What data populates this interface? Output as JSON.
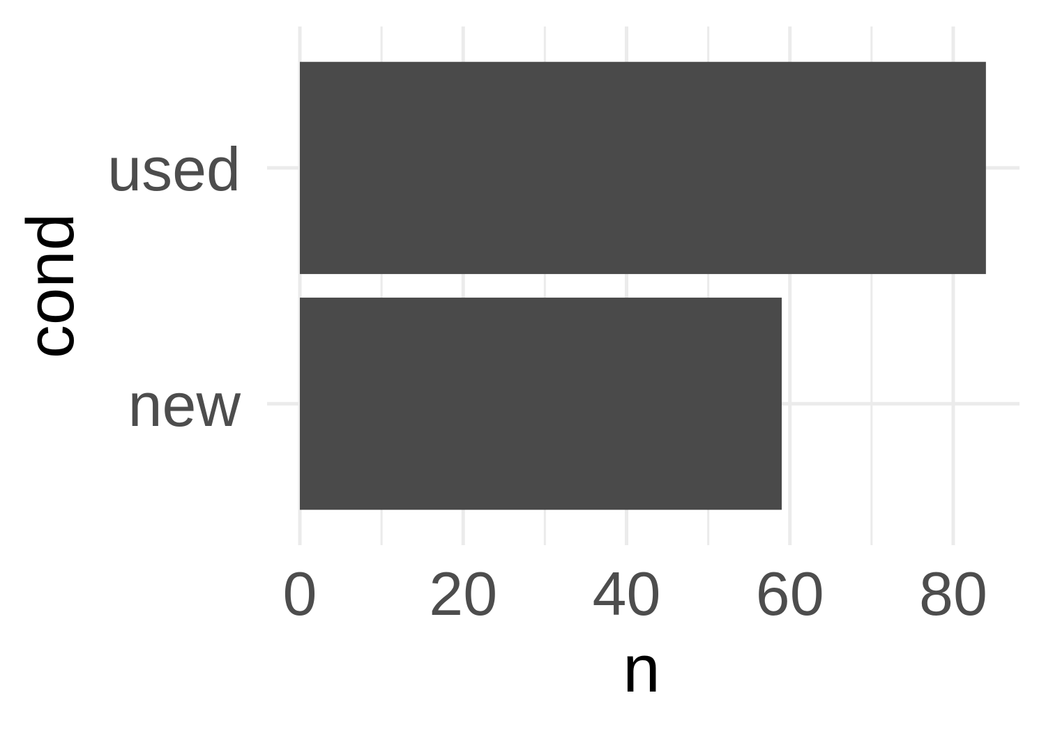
{
  "chart_data": {
    "type": "bar",
    "orientation": "horizontal",
    "categories": [
      "new",
      "used"
    ],
    "values": [
      59,
      84
    ],
    "title": "",
    "xlabel": "n",
    "ylabel": "cond",
    "xlim": [
      0,
      88.2
    ],
    "xticks": [
      0,
      20,
      40,
      60,
      80
    ],
    "xticks_minor": [
      10,
      30,
      50,
      70
    ],
    "grid": true,
    "legend": "none",
    "colors": {
      "bar": "#4a4a4a",
      "grid": "#ebebeb",
      "tick_text": "#4d4d4d",
      "axis_title": "#000000"
    }
  }
}
